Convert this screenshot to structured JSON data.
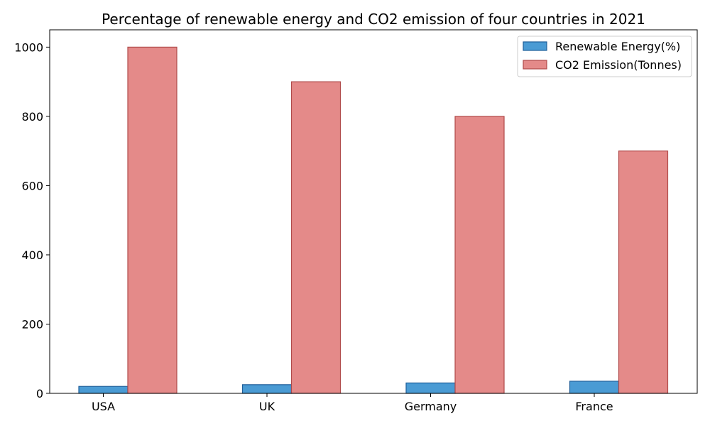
{
  "chart_data": {
    "type": "bar",
    "title": "Percentage of renewable energy and CO2 emission of four countries in 2021",
    "xlabel": "",
    "ylabel": "",
    "categories": [
      "USA",
      "UK",
      "Germany",
      "France"
    ],
    "series": [
      {
        "name": "Renewable Energy(%)",
        "values": [
          20,
          25,
          30,
          35
        ],
        "color": "#4a9bd4",
        "edge_color": "#1f5f9a"
      },
      {
        "name": "CO2 Emission(Tonnes)",
        "values": [
          1000,
          900,
          800,
          700
        ],
        "color": "#e48a89",
        "edge_color": "#b04a4a"
      }
    ],
    "ylim": [
      0,
      1050
    ],
    "yticks": [
      0,
      200,
      400,
      600,
      800,
      1000
    ],
    "grid": false,
    "legend_position": "top-right"
  }
}
